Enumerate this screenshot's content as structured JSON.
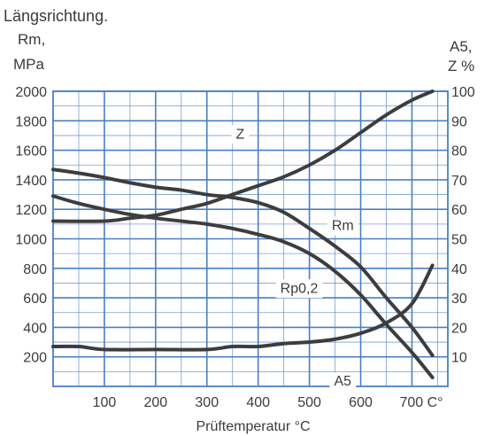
{
  "header": {
    "title": "Längsrichtung.",
    "left_axis_line1": "Rm,",
    "left_axis_line2": "MPa",
    "right_axis_line1": "A5,",
    "right_axis_line2": "Z %"
  },
  "chart_data": {
    "type": "line",
    "title": "Längsrichtung.",
    "xlabel": "Prüftemperatur °C",
    "ylabel": "Rm, MPa",
    "y2label": "A5, Z %",
    "xlim": [
      0,
      770
    ],
    "ylim": [
      0,
      2000
    ],
    "y2lim": [
      0,
      100
    ],
    "x_ticks": [
      100,
      200,
      300,
      400,
      500,
      600,
      700
    ],
    "x_tick_labels": [
      "100",
      "200",
      "300",
      "400",
      "500",
      "600",
      "700 C°"
    ],
    "y_ticks": [
      200,
      400,
      600,
      800,
      1000,
      1200,
      1400,
      1600,
      1800,
      2000
    ],
    "y2_ticks": [
      10,
      20,
      30,
      40,
      50,
      60,
      70,
      80,
      90,
      100
    ],
    "grid": true,
    "colors": {
      "grid": "#4a7fc4",
      "curve": "#3d3d3d",
      "label_bg": "#ffffff"
    },
    "series": [
      {
        "name": "Rm",
        "axis": "left",
        "x": [
          0,
          50,
          100,
          150,
          200,
          250,
          300,
          350,
          400,
          450,
          500,
          550,
          600,
          650,
          700,
          740
        ],
        "y": [
          1470,
          1445,
          1415,
          1380,
          1350,
          1330,
          1300,
          1280,
          1245,
          1180,
          1070,
          950,
          810,
          600,
          400,
          210
        ]
      },
      {
        "name": "Rp0,2",
        "axis": "left",
        "x": [
          0,
          50,
          100,
          150,
          200,
          250,
          300,
          350,
          400,
          450,
          500,
          550,
          600,
          650,
          700,
          740
        ],
        "y": [
          1290,
          1240,
          1200,
          1165,
          1140,
          1120,
          1100,
          1070,
          1030,
          980,
          900,
          780,
          620,
          420,
          230,
          60
        ]
      },
      {
        "name": "Z",
        "axis": "right",
        "x": [
          0,
          100,
          150,
          200,
          250,
          300,
          350,
          400,
          450,
          500,
          550,
          600,
          650,
          700,
          740
        ],
        "y": [
          56,
          56,
          57,
          58,
          60,
          62,
          65,
          68,
          71,
          75,
          80,
          86,
          92,
          97,
          100
        ]
      },
      {
        "name": "A5",
        "axis": "right",
        "x": [
          0,
          50,
          100,
          200,
          300,
          350,
          400,
          450,
          500,
          550,
          600,
          650,
          700,
          740
        ],
        "y": [
          13.5,
          13.5,
          12.5,
          12.5,
          12.5,
          13.5,
          13.5,
          14.5,
          15,
          16,
          18,
          21.5,
          28,
          41
        ]
      }
    ],
    "annotations": [
      {
        "text": "Z",
        "x": 365,
        "y2": 84
      },
      {
        "text": "Rm",
        "x": 565,
        "y": 1060
      },
      {
        "text": "Rp0,2",
        "x": 480,
        "y": 635
      },
      {
        "text": "A5",
        "x": 565,
        "y": 5
      }
    ]
  }
}
